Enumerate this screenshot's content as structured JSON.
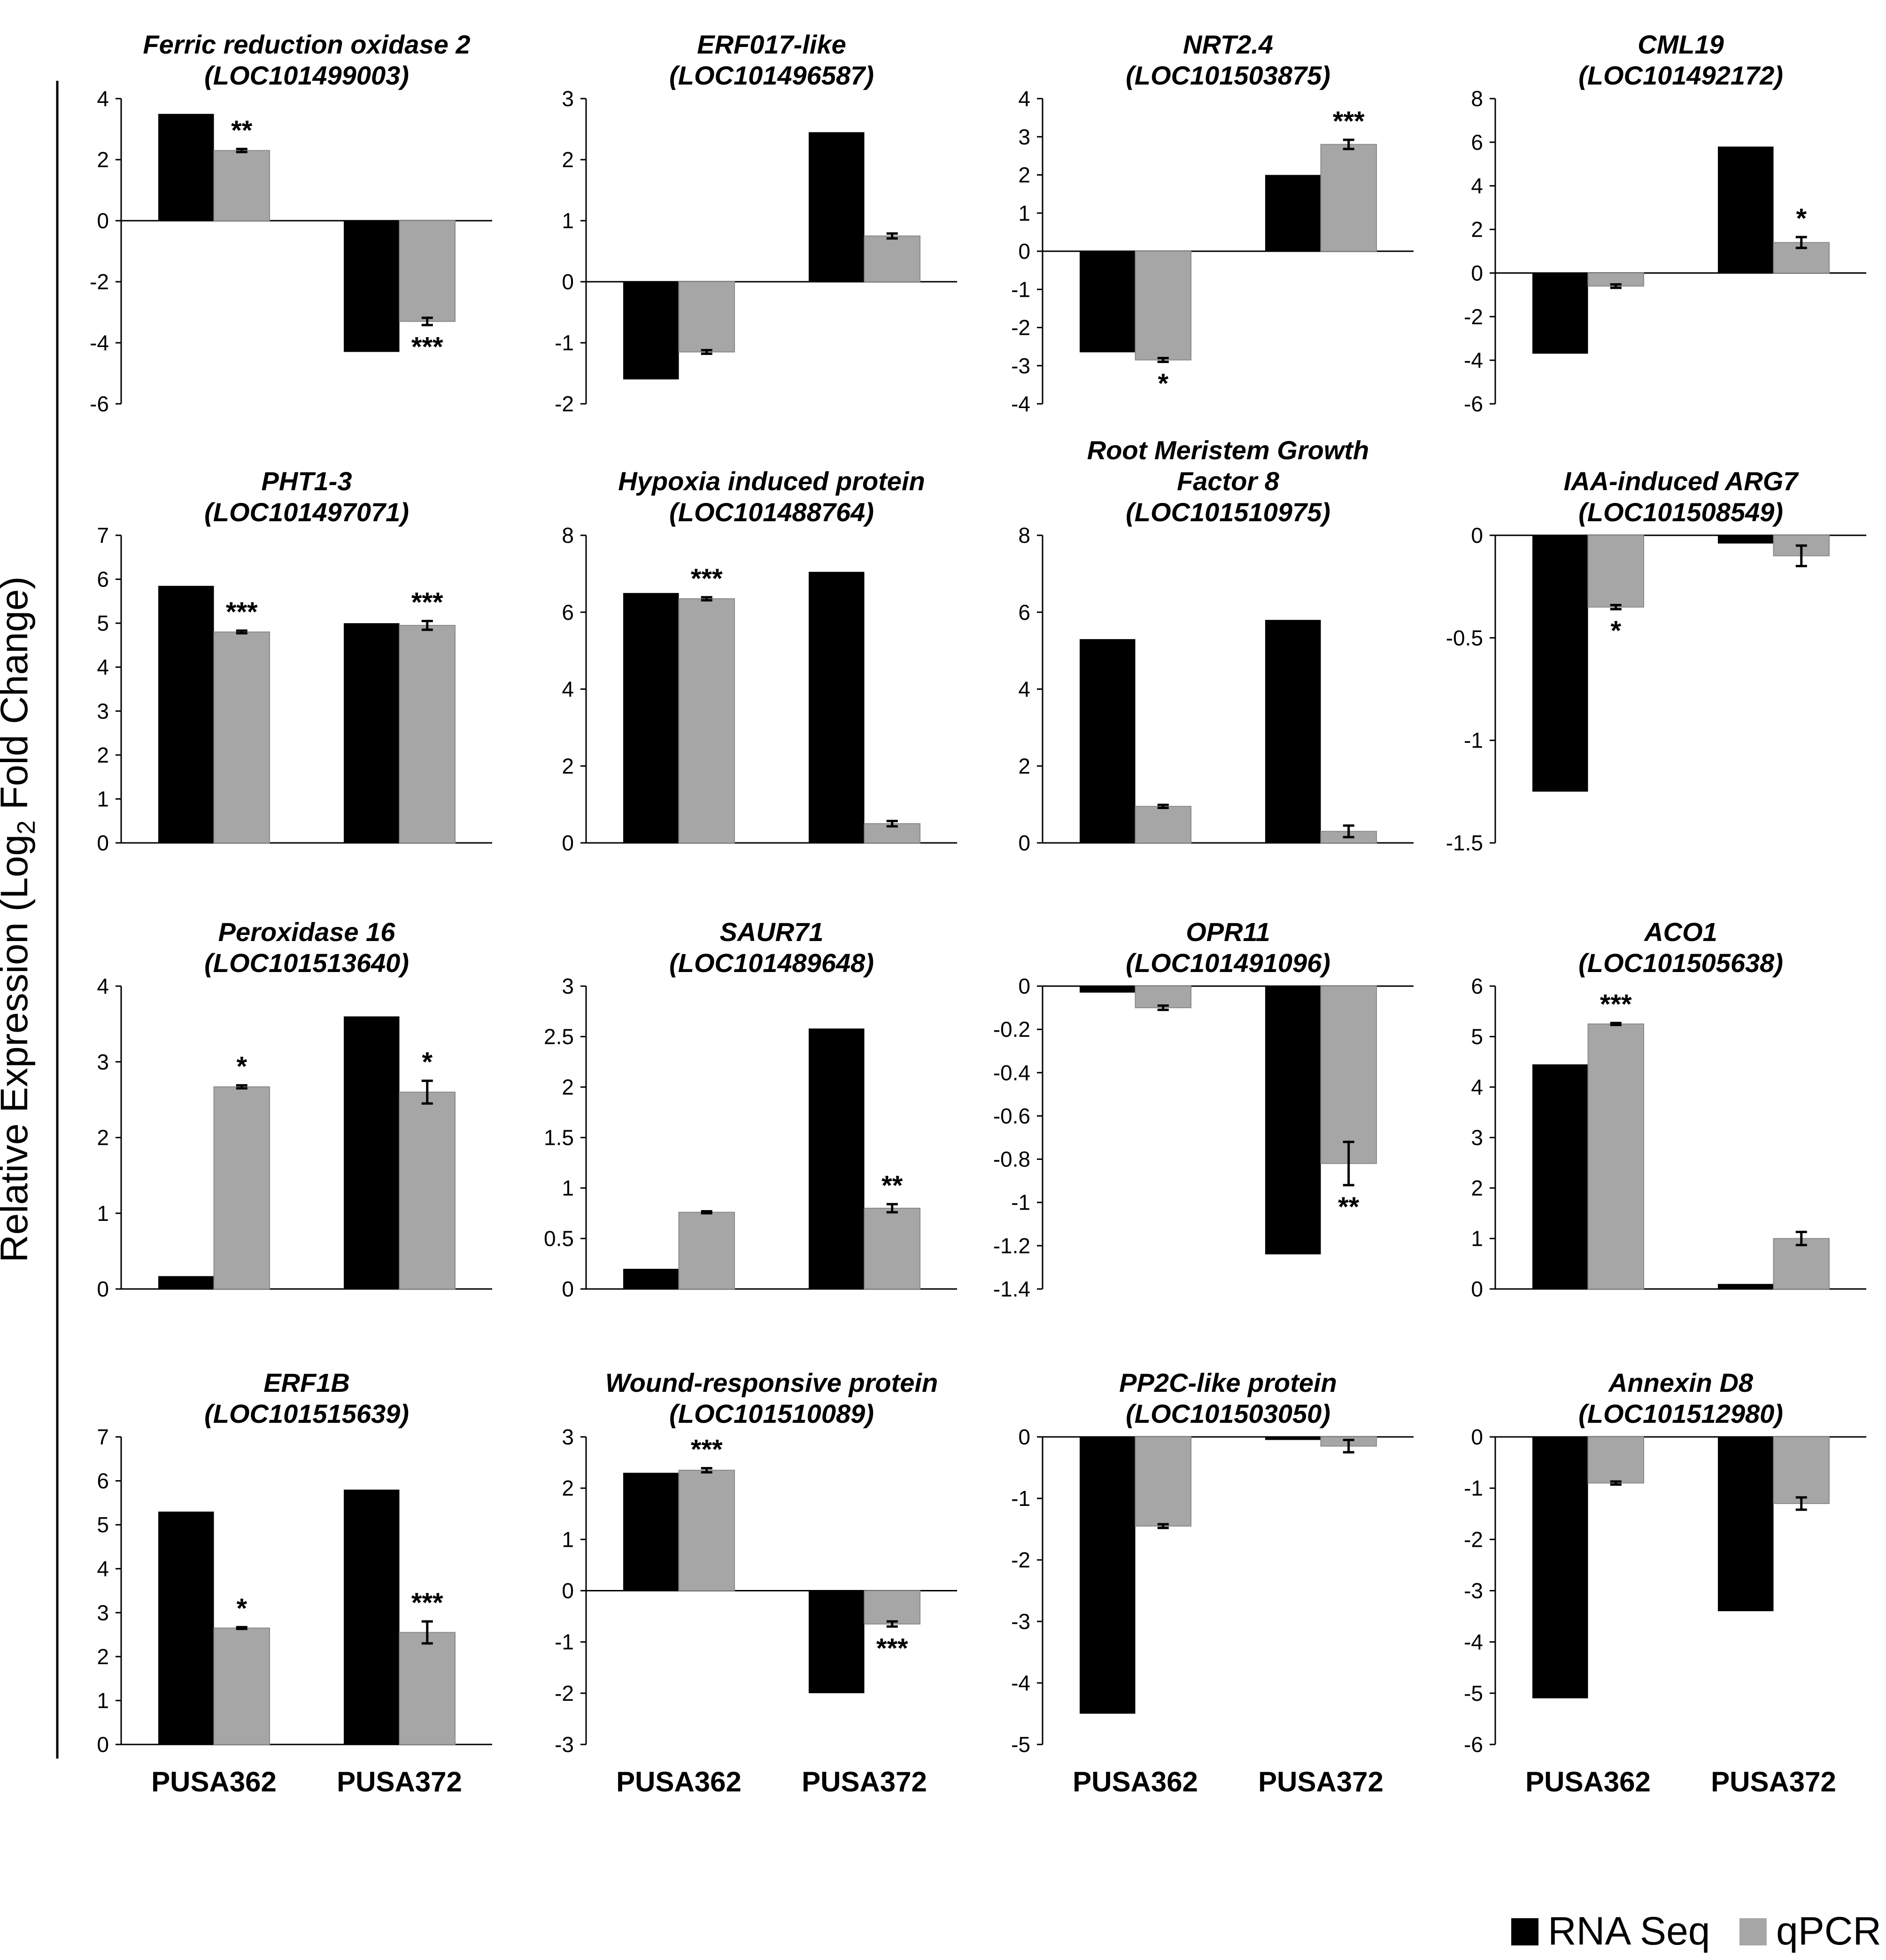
{
  "figure": {
    "y_axis_label": "Relative  Expression (Log",
    "y_axis_label_sub": "2",
    "y_axis_label_end": " Fold Change)",
    "categories": [
      "PUSA362",
      "PUSA372"
    ],
    "legend": [
      {
        "label": "RNA Seq",
        "color": "#000000"
      },
      {
        "label": "qPCR",
        "color": "#a6a6a6"
      }
    ]
  },
  "chart_data": [
    {
      "type": "bar",
      "title_lines": [
        "Ferric reduction oxidase  2",
        "(LOC101499003)"
      ],
      "categories": [
        "PUSA362",
        "PUSA372"
      ],
      "series": [
        {
          "name": "RNA Seq",
          "values": [
            3.5,
            -4.3
          ]
        },
        {
          "name": "qPCR",
          "values": [
            2.3,
            -3.3
          ],
          "errors": [
            0.05,
            0.12
          ]
        }
      ],
      "ylim": [
        -6,
        4
      ],
      "yticks": [
        "4",
        "2",
        "0",
        "-2",
        "-4",
        "-6"
      ],
      "significance": [
        "**",
        "***"
      ]
    },
    {
      "type": "bar",
      "title_lines": [
        "ERF017-like",
        "(LOC101496587)"
      ],
      "categories": [
        "PUSA362",
        "PUSA372"
      ],
      "series": [
        {
          "name": "RNA Seq",
          "values": [
            -1.6,
            2.45
          ]
        },
        {
          "name": "qPCR",
          "values": [
            -1.15,
            0.75
          ],
          "errors": [
            0.03,
            0.04
          ]
        }
      ],
      "ylim": [
        -2,
        3
      ],
      "yticks": [
        "3",
        "2",
        "1",
        "0",
        "-1",
        "-2"
      ],
      "significance": [
        "",
        ""
      ]
    },
    {
      "type": "bar",
      "title_lines": [
        "NRT2.4",
        "(LOC101503875)"
      ],
      "categories": [
        "PUSA362",
        "PUSA372"
      ],
      "series": [
        {
          "name": "RNA Seq",
          "values": [
            -2.65,
            2.0
          ]
        },
        {
          "name": "qPCR",
          "values": [
            -2.85,
            2.8
          ],
          "errors": [
            0.05,
            0.12
          ]
        }
      ],
      "ylim": [
        -4,
        4
      ],
      "yticks": [
        "4",
        "3",
        "2",
        "1",
        "0",
        "-1",
        "-2",
        "-3",
        "-4"
      ],
      "significance": [
        "*",
        "***"
      ]
    },
    {
      "type": "bar",
      "title_lines": [
        "CML19",
        "(LOC101492172)"
      ],
      "categories": [
        "PUSA362",
        "PUSA372"
      ],
      "series": [
        {
          "name": "RNA Seq",
          "values": [
            -3.7,
            5.8
          ]
        },
        {
          "name": "qPCR",
          "values": [
            -0.6,
            1.4
          ],
          "errors": [
            0.08,
            0.25
          ]
        }
      ],
      "ylim": [
        -6,
        8
      ],
      "yticks": [
        "8",
        "6",
        "4",
        "2",
        "0",
        "-2",
        "-4",
        "-6"
      ],
      "significance": [
        "",
        "*"
      ]
    },
    {
      "type": "bar",
      "title_lines": [
        "PHT1-3",
        "(LOC101497071)"
      ],
      "categories": [
        "PUSA362",
        "PUSA372"
      ],
      "series": [
        {
          "name": "RNA Seq",
          "values": [
            5.85,
            5.0
          ]
        },
        {
          "name": "qPCR",
          "values": [
            4.8,
            4.95
          ],
          "errors": [
            0.03,
            0.1
          ]
        }
      ],
      "ylim": [
        0,
        7
      ],
      "yticks": [
        "7",
        "6",
        "5",
        "4",
        "3",
        "2",
        "1",
        "0"
      ],
      "significance": [
        "***",
        "***"
      ]
    },
    {
      "type": "bar",
      "title_lines": [
        "Hypoxia  induced protein",
        "(LOC101488764)"
      ],
      "categories": [
        "PUSA362",
        "PUSA372"
      ],
      "series": [
        {
          "name": "RNA Seq",
          "values": [
            6.5,
            7.05
          ]
        },
        {
          "name": "qPCR",
          "values": [
            6.35,
            0.5
          ],
          "errors": [
            0.04,
            0.07
          ]
        }
      ],
      "ylim": [
        0,
        8
      ],
      "yticks": [
        "8",
        "6",
        "4",
        "2",
        "0"
      ],
      "significance": [
        "***",
        ""
      ]
    },
    {
      "type": "bar",
      "title_lines": [
        "Root Meristem Growth",
        "Factor 8",
        "(LOC101510975)"
      ],
      "categories": [
        "PUSA362",
        "PUSA372"
      ],
      "series": [
        {
          "name": "RNA Seq",
          "values": [
            5.3,
            5.8
          ]
        },
        {
          "name": "qPCR",
          "values": [
            0.95,
            0.3
          ],
          "errors": [
            0.04,
            0.15
          ]
        }
      ],
      "ylim": [
        0,
        8
      ],
      "yticks": [
        "8",
        "6",
        "4",
        "2",
        "0"
      ],
      "significance": [
        "",
        ""
      ]
    },
    {
      "type": "bar",
      "title_lines": [
        "IAA-induced ARG7",
        "(LOC101508549)"
      ],
      "categories": [
        "PUSA362",
        "PUSA372"
      ],
      "series": [
        {
          "name": "RNA Seq",
          "values": [
            -1.25,
            -0.04
          ]
        },
        {
          "name": "qPCR",
          "values": [
            -0.35,
            -0.1
          ],
          "errors": [
            0.01,
            0.05
          ]
        }
      ],
      "ylim": [
        -1.5,
        0
      ],
      "yticks": [
        "0",
        "-0.5",
        "-1",
        "-1.5"
      ],
      "significance": [
        "*",
        ""
      ]
    },
    {
      "type": "bar",
      "title_lines": [
        "Peroxidase  16",
        "(LOC101513640)"
      ],
      "categories": [
        "PUSA362",
        "PUSA372"
      ],
      "series": [
        {
          "name": "RNA Seq",
          "values": [
            0.17,
            3.6
          ]
        },
        {
          "name": "qPCR",
          "values": [
            2.67,
            2.6
          ],
          "errors": [
            0.02,
            0.15
          ]
        }
      ],
      "ylim": [
        0,
        4
      ],
      "yticks": [
        "4",
        "3",
        "2",
        "1",
        "0"
      ],
      "significance": [
        "*",
        "*"
      ]
    },
    {
      "type": "bar",
      "title_lines": [
        "SAUR71",
        "(LOC101489648)"
      ],
      "categories": [
        "PUSA362",
        "PUSA372"
      ],
      "series": [
        {
          "name": "RNA Seq",
          "values": [
            0.2,
            2.58
          ]
        },
        {
          "name": "qPCR",
          "values": [
            0.76,
            0.8
          ],
          "errors": [
            0.01,
            0.04
          ]
        }
      ],
      "ylim": [
        0,
        3
      ],
      "yticks": [
        "3",
        "2.5",
        "2",
        "1.5",
        "1",
        "0.5",
        "0"
      ],
      "significance": [
        "",
        "**"
      ]
    },
    {
      "type": "bar",
      "title_lines": [
        "OPR11",
        "(LOC101491096)"
      ],
      "categories": [
        "PUSA362",
        "PUSA372"
      ],
      "series": [
        {
          "name": "RNA Seq",
          "values": [
            -0.03,
            -1.24
          ]
        },
        {
          "name": "qPCR",
          "values": [
            -0.1,
            -0.82
          ],
          "errors": [
            0.01,
            0.1
          ]
        }
      ],
      "ylim": [
        -1.4,
        0
      ],
      "yticks": [
        "0",
        "-0.2",
        "-0.4",
        "-0.6",
        "-0.8",
        "-1",
        "-1.2",
        "-1.4"
      ],
      "significance": [
        "",
        "**"
      ]
    },
    {
      "type": "bar",
      "title_lines": [
        "ACO1",
        "(LOC101505638)"
      ],
      "categories": [
        "PUSA362",
        "PUSA372"
      ],
      "series": [
        {
          "name": "RNA Seq",
          "values": [
            4.45,
            0.1
          ]
        },
        {
          "name": "qPCR",
          "values": [
            5.25,
            1.0
          ],
          "errors": [
            0.02,
            0.13
          ]
        }
      ],
      "ylim": [
        0,
        6
      ],
      "yticks": [
        "6",
        "5",
        "4",
        "3",
        "2",
        "1",
        "0"
      ],
      "significance": [
        "***",
        ""
      ]
    },
    {
      "type": "bar",
      "title_lines": [
        "ERF1B",
        "(LOC101515639)"
      ],
      "categories": [
        "PUSA362",
        "PUSA372"
      ],
      "series": [
        {
          "name": "RNA Seq",
          "values": [
            5.3,
            5.8
          ]
        },
        {
          "name": "qPCR",
          "values": [
            2.65,
            2.55
          ],
          "errors": [
            0.02,
            0.25
          ]
        }
      ],
      "ylim": [
        0,
        7
      ],
      "yticks": [
        "7",
        "6",
        "5",
        "4",
        "3",
        "2",
        "1",
        "0"
      ],
      "significance": [
        "*",
        "***"
      ]
    },
    {
      "type": "bar",
      "title_lines": [
        "Wound-responsive protein",
        "(LOC101510089)"
      ],
      "categories": [
        "PUSA362",
        "PUSA372"
      ],
      "series": [
        {
          "name": "RNA Seq",
          "values": [
            2.3,
            -2.0
          ]
        },
        {
          "name": "qPCR",
          "values": [
            2.35,
            -0.65
          ],
          "errors": [
            0.04,
            0.05
          ]
        }
      ],
      "ylim": [
        -3,
        3
      ],
      "yticks": [
        "3",
        "2",
        "1",
        "0",
        "-1",
        "-2",
        "-3"
      ],
      "significance": [
        "***",
        "***"
      ]
    },
    {
      "type": "bar",
      "title_lines": [
        "PP2C-like  protein",
        "(LOC101503050)"
      ],
      "categories": [
        "PUSA362",
        "PUSA372"
      ],
      "series": [
        {
          "name": "RNA Seq",
          "values": [
            -4.5,
            -0.05
          ]
        },
        {
          "name": "qPCR",
          "values": [
            -1.45,
            -0.15
          ],
          "errors": [
            0.03,
            0.1
          ]
        }
      ],
      "ylim": [
        -5,
        0
      ],
      "yticks": [
        "0",
        "-1",
        "-2",
        "-3",
        "-4",
        "-5"
      ],
      "significance": [
        "",
        ""
      ]
    },
    {
      "type": "bar",
      "title_lines": [
        "Annexin D8",
        "(LOC101512980)"
      ],
      "categories": [
        "PUSA362",
        "PUSA372"
      ],
      "series": [
        {
          "name": "RNA Seq",
          "values": [
            -5.1,
            -3.4
          ]
        },
        {
          "name": "qPCR",
          "values": [
            -0.9,
            -1.3
          ],
          "errors": [
            0.03,
            0.12
          ]
        }
      ],
      "ylim": [
        -6,
        0
      ],
      "yticks": [
        "0",
        "-1",
        "-2",
        "-3",
        "-4",
        "-5",
        "-6"
      ],
      "significance": [
        "",
        ""
      ]
    }
  ]
}
